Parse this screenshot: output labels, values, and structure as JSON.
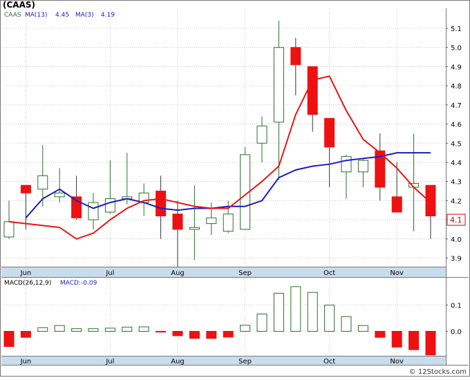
{
  "header": {
    "ticker_title": "(CAAS)",
    "legend": {
      "symbol": "CAAS",
      "ma13_label": "MA(13)",
      "ma13_value": "4.45",
      "ma3_label": "MA(3)",
      "ma3_value": "4.19"
    },
    "current_price_tag": "4.1",
    "watermark": "© 12Stocks.com"
  },
  "macd_panel": {
    "params_label": "MACD(26,12,9)",
    "value_label": "MACD:-0.09"
  },
  "colors": {
    "up_candle": "#2a6e2a",
    "down_candle": "#ee1111",
    "ma13_line": "#1a1acc",
    "ma3_line": "#ee1111",
    "axis_strip": "#c8dcec",
    "grid": "#bbbbbb",
    "price_tag": "#cc0000"
  },
  "chart_data": [
    {
      "type": "candlestick",
      "title": "(CAAS)",
      "x_ticks": [
        "Jun",
        "Jul",
        "Aug",
        "Sep",
        "Oct",
        "Nov"
      ],
      "x_tick_weeks": [
        1,
        6,
        10,
        14,
        19,
        23
      ],
      "y_ticks": [
        "3.9",
        "4.0",
        "4.1",
        "4.2",
        "4.3",
        "4.4",
        "4.5",
        "4.6",
        "4.7",
        "4.8",
        "4.9",
        "5.0",
        "5.1"
      ],
      "ylim": [
        3.85,
        5.15
      ],
      "grid": true,
      "candles": [
        {
          "open": 4.01,
          "high": 4.2,
          "low": 4.0,
          "close": 4.09
        },
        {
          "open": 4.28,
          "high": 4.28,
          "low": 4.05,
          "close": 4.24
        },
        {
          "open": 4.26,
          "high": 4.49,
          "low": 4.17,
          "close": 4.33
        },
        {
          "open": 4.22,
          "high": 4.37,
          "low": 4.19,
          "close": 4.24
        },
        {
          "open": 4.22,
          "high": 4.33,
          "low": 4.1,
          "close": 4.11
        },
        {
          "open": 4.1,
          "high": 4.24,
          "low": 4.05,
          "close": 4.19
        },
        {
          "open": 4.14,
          "high": 4.41,
          "low": 4.13,
          "close": 4.21
        },
        {
          "open": 4.21,
          "high": 4.45,
          "low": 4.18,
          "close": 4.22
        },
        {
          "open": 4.19,
          "high": 4.29,
          "low": 4.12,
          "close": 4.24
        },
        {
          "open": 4.25,
          "high": 4.33,
          "low": 4.0,
          "close": 4.12
        },
        {
          "open": 4.13,
          "high": 4.2,
          "low": 3.85,
          "close": 4.05
        },
        {
          "open": 4.05,
          "high": 4.28,
          "low": 3.89,
          "close": 4.06
        },
        {
          "open": 4.08,
          "high": 4.19,
          "low": 4.02,
          "close": 4.11
        },
        {
          "open": 4.04,
          "high": 4.2,
          "low": 4.03,
          "close": 4.13
        },
        {
          "open": 4.05,
          "high": 4.48,
          "low": 4.05,
          "close": 4.44
        },
        {
          "open": 4.5,
          "high": 4.64,
          "low": 4.4,
          "close": 4.59
        },
        {
          "open": 4.61,
          "high": 5.14,
          "low": 4.31,
          "close": 5.0
        },
        {
          "open": 5.0,
          "high": 5.05,
          "low": 4.75,
          "close": 4.91
        },
        {
          "open": 4.9,
          "high": 4.9,
          "low": 4.56,
          "close": 4.65
        },
        {
          "open": 4.63,
          "high": 4.63,
          "low": 4.27,
          "close": 4.48
        },
        {
          "open": 4.35,
          "high": 4.44,
          "low": 4.21,
          "close": 4.43
        },
        {
          "open": 4.35,
          "high": 4.42,
          "low": 4.27,
          "close": 4.41
        },
        {
          "open": 4.46,
          "high": 4.55,
          "low": 4.2,
          "close": 4.27
        },
        {
          "open": 4.22,
          "high": 4.4,
          "low": 4.14,
          "close": 4.14
        },
        {
          "open": 4.27,
          "high": 4.55,
          "low": 4.04,
          "close": 4.29
        },
        {
          "open": 4.28,
          "high": 4.28,
          "low": 4.0,
          "close": 4.12
        }
      ],
      "series": [
        {
          "name": "MA(13)",
          "values": [
            4.1,
            4.11,
            4.21,
            4.26,
            4.2,
            4.16,
            4.19,
            4.21,
            4.19,
            4.16,
            4.15,
            4.16,
            4.16,
            4.17,
            4.17,
            4.2,
            4.32,
            4.36,
            4.38,
            4.39,
            4.41,
            4.42,
            4.43,
            4.45,
            4.45,
            4.45
          ]
        },
        {
          "name": "MA(3)",
          "values": [
            4.09,
            4.08,
            4.07,
            4.06,
            4.0,
            4.03,
            4.1,
            4.16,
            4.2,
            4.21,
            4.19,
            4.17,
            4.16,
            4.16,
            4.23,
            4.3,
            4.38,
            4.65,
            4.83,
            4.85,
            4.67,
            4.52,
            4.45,
            4.37,
            4.27,
            4.19
          ]
        }
      ],
      "ma_start": 1,
      "series_starts": [
        1,
        2
      ],
      "last_price": 4.1
    },
    {
      "type": "bar",
      "title": "MACD(26,12,9)",
      "x_ticks": [
        "Jun",
        "Jul",
        "Aug",
        "Sep",
        "Oct",
        "Nov"
      ],
      "x_tick_weeks": [
        1,
        6,
        10,
        14,
        19,
        23
      ],
      "y_ticks": [
        "0.0",
        "0.1"
      ],
      "ylim": [
        -0.095,
        0.19
      ],
      "values": [
        -0.058,
        -0.023,
        0.014,
        0.022,
        0.01,
        0.01,
        0.012,
        0.016,
        0.017,
        -0.003,
        -0.017,
        -0.027,
        -0.027,
        -0.022,
        0.023,
        0.066,
        0.145,
        0.17,
        0.148,
        0.1,
        0.056,
        0.022,
        -0.023,
        -0.06,
        -0.07,
        -0.09
      ]
    }
  ]
}
